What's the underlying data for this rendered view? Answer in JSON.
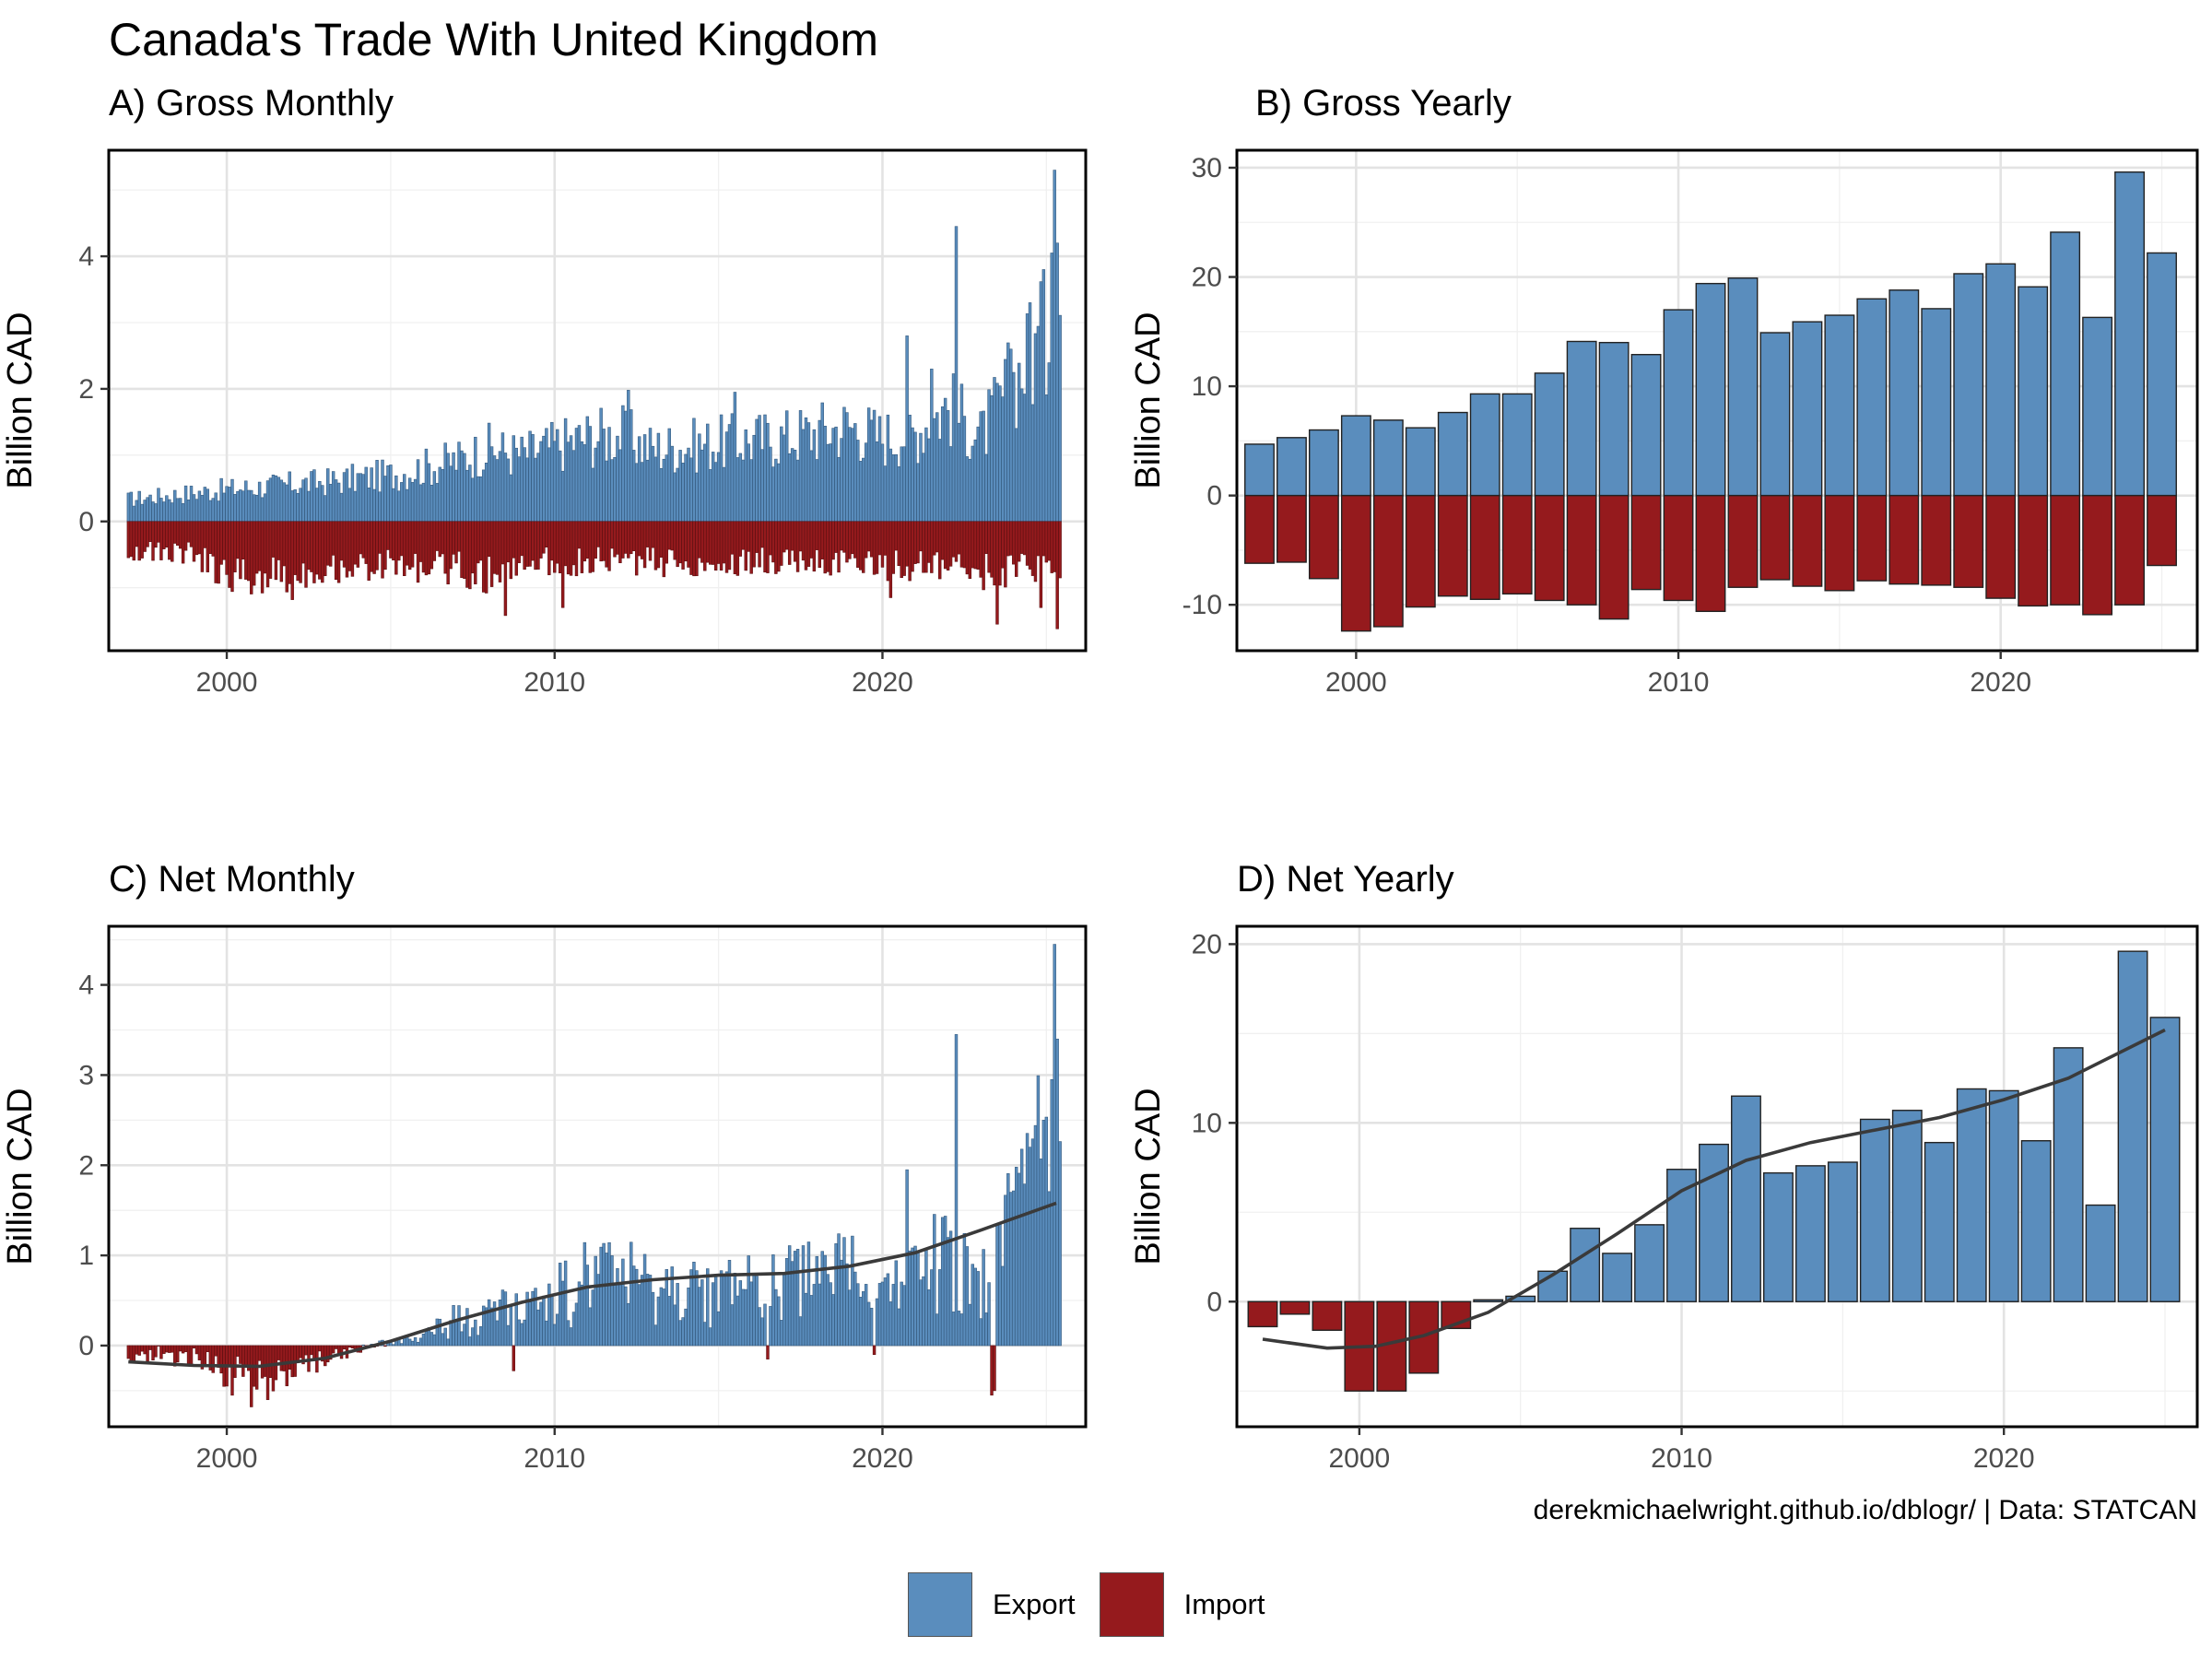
{
  "title": "Canada's Trade With United Kingdom",
  "caption": "derekmichaelwright.github.io/dblogr/ | Data: STATCAN",
  "colors": {
    "export": "#5a8dbd",
    "import": "#951a1d",
    "trend": "#3a3a3a"
  },
  "legend": {
    "items": [
      {
        "label": "Export",
        "color": "#5a8dbd"
      },
      {
        "label": "Import",
        "color": "#951a1d"
      }
    ]
  },
  "chart_data": [
    {
      "id": "A",
      "title": "A) Gross Monthly",
      "type": "bar",
      "ylabel": "Billion CAD",
      "xlim": [
        1996.4,
        2026.2
      ],
      "ylim": [
        -1.95,
        5.6
      ],
      "xticks": [
        2000,
        2010,
        2020
      ],
      "yticks": [
        0,
        2,
        4
      ],
      "grid": true,
      "monthly": true,
      "x_start": 1997,
      "x_end": 2025.4,
      "export_anchors": [
        [
          1997,
          0.38
        ],
        [
          2000,
          0.55
        ],
        [
          2003,
          0.68
        ],
        [
          2005,
          0.8
        ],
        [
          2007,
          1.05
        ],
        [
          2008,
          1.25
        ],
        [
          2009,
          1.15
        ],
        [
          2011,
          1.45
        ],
        [
          2012,
          1.5
        ],
        [
          2013,
          1.25
        ],
        [
          2015,
          1.35
        ],
        [
          2017,
          1.45
        ],
        [
          2019,
          1.65
        ],
        [
          2020,
          1.45
        ],
        [
          2021,
          1.55
        ],
        [
          2022,
          2.0
        ],
        [
          2023,
          1.45
        ],
        [
          2024,
          2.45
        ],
        [
          2025,
          3.2
        ],
        [
          2025.4,
          3.6
        ]
      ],
      "import_anchors": [
        [
          1997,
          -0.5
        ],
        [
          1999,
          -0.55
        ],
        [
          2000,
          -0.95
        ],
        [
          2001,
          -0.95
        ],
        [
          2003,
          -0.8
        ],
        [
          2005,
          -0.75
        ],
        [
          2007,
          -0.8
        ],
        [
          2008,
          -0.95
        ],
        [
          2009,
          -0.7
        ],
        [
          2012,
          -0.68
        ],
        [
          2015,
          -0.72
        ],
        [
          2018,
          -0.68
        ],
        [
          2020,
          -0.75
        ],
        [
          2022,
          -0.82
        ],
        [
          2023,
          -0.88
        ],
        [
          2025,
          -0.78
        ],
        [
          2025.4,
          -0.85
        ]
      ],
      "export_spikes": [
        [
          2022.25,
          4.45
        ],
        [
          2025.25,
          5.3
        ],
        [
          2025.33,
          4.2
        ],
        [
          2025.17,
          4.05
        ],
        [
          2024.92,
          3.8
        ],
        [
          2024.5,
          3.3
        ],
        [
          2020.75,
          2.8
        ],
        [
          2023.9,
          2.6
        ],
        [
          2021.5,
          2.3
        ],
        [
          2015.5,
          1.95
        ],
        [
          2012.25,
          1.98
        ]
      ],
      "import_spikes": [
        [
          2008.5,
          -1.42
        ],
        [
          2010.25,
          -1.3
        ],
        [
          2023.5,
          -1.55
        ],
        [
          2025.33,
          -1.62
        ],
        [
          2002.0,
          -1.18
        ],
        [
          2020.25,
          -1.15
        ],
        [
          2024.8,
          -1.3
        ]
      ]
    },
    {
      "id": "B",
      "title": "B) Gross Yearly",
      "type": "bar",
      "ylabel": "Billion CAD",
      "xlim": [
        1996.3,
        2026.1
      ],
      "ylim": [
        -14.2,
        31.6
      ],
      "xticks": [
        2000,
        2010,
        2020
      ],
      "yticks": [
        30,
        20,
        10,
        0,
        -10
      ],
      "grid": true,
      "x": [
        1997,
        1998,
        1999,
        2000,
        2001,
        2002,
        2003,
        2004,
        2005,
        2006,
        2007,
        2008,
        2009,
        2010,
        2011,
        2012,
        2013,
        2014,
        2015,
        2016,
        2017,
        2018,
        2019,
        2020,
        2021,
        2022,
        2023,
        2024,
        2025
      ],
      "series": [
        {
          "name": "Export",
          "values": [
            4.7,
            5.3,
            6.0,
            7.3,
            6.9,
            6.2,
            7.6,
            9.3,
            9.3,
            11.2,
            14.1,
            14.0,
            12.9,
            17.0,
            19.4,
            19.9,
            14.9,
            15.9,
            16.5,
            18.0,
            18.8,
            17.1,
            20.3,
            21.2,
            19.1,
            24.1,
            16.3,
            29.6,
            22.2
          ]
        },
        {
          "name": "Import",
          "values": [
            -6.2,
            -6.1,
            -7.6,
            -12.4,
            -12.0,
            -10.2,
            -9.2,
            -9.5,
            -9.0,
            -9.6,
            -10.0,
            -11.3,
            -8.6,
            -9.6,
            -10.6,
            -8.4,
            -7.7,
            -8.3,
            -8.7,
            -7.8,
            -8.1,
            -8.2,
            -8.4,
            -9.4,
            -10.1,
            -10.0,
            -10.9,
            -10.0,
            -6.4
          ]
        }
      ]
    },
    {
      "id": "C",
      "title": "C) Net Monthly",
      "type": "bar",
      "ylabel": "Billion CAD",
      "xlim": [
        1996.4,
        2026.2
      ],
      "ylim": [
        -0.9,
        4.65
      ],
      "xticks": [
        2000,
        2010,
        2020
      ],
      "yticks": [
        0,
        1,
        2,
        3,
        4
      ],
      "grid": true,
      "monthly": true,
      "x_start": 1997,
      "x_end": 2025.4,
      "net_anchors": [
        [
          1997,
          -0.12
        ],
        [
          1999,
          -0.15
        ],
        [
          2000,
          -0.35
        ],
        [
          2001,
          -0.4
        ],
        [
          2002,
          -0.28
        ],
        [
          2003,
          -0.15
        ],
        [
          2004,
          -0.05
        ],
        [
          2005,
          0.02
        ],
        [
          2006,
          0.15
        ],
        [
          2007,
          0.3
        ],
        [
          2008,
          0.45
        ],
        [
          2009,
          0.4
        ],
        [
          2010,
          0.6
        ],
        [
          2011,
          0.8
        ],
        [
          2012,
          0.85
        ],
        [
          2013,
          0.6
        ],
        [
          2015,
          0.7
        ],
        [
          2017,
          0.8
        ],
        [
          2019,
          0.95
        ],
        [
          2020,
          0.75
        ],
        [
          2021,
          0.85
        ],
        [
          2022,
          1.15
        ],
        [
          2023,
          0.65
        ],
        [
          2024,
          1.6
        ],
        [
          2025,
          2.4
        ],
        [
          2025.4,
          2.6
        ]
      ],
      "net_spikes": [
        [
          2022.25,
          3.45
        ],
        [
          2025.25,
          4.45
        ],
        [
          2025.33,
          3.4
        ],
        [
          2025.17,
          2.95
        ],
        [
          2024.92,
          2.5
        ],
        [
          2024.5,
          2.2
        ],
        [
          2020.75,
          1.95
        ],
        [
          2023.9,
          1.7
        ],
        [
          2023.35,
          -0.55
        ],
        [
          2023.45,
          -0.5
        ],
        [
          2000.75,
          -0.68
        ],
        [
          2001.25,
          -0.6
        ],
        [
          2008.75,
          -0.28
        ],
        [
          2016.5,
          -0.15
        ],
        [
          2019.75,
          -0.1
        ]
      ],
      "trend": [
        [
          1997,
          -0.18
        ],
        [
          1999,
          -0.22
        ],
        [
          2001,
          -0.23
        ],
        [
          2003,
          -0.14
        ],
        [
          2005,
          0.05
        ],
        [
          2007,
          0.28
        ],
        [
          2009,
          0.48
        ],
        [
          2011,
          0.65
        ],
        [
          2013,
          0.73
        ],
        [
          2015,
          0.78
        ],
        [
          2017,
          0.8
        ],
        [
          2019,
          0.88
        ],
        [
          2021,
          1.03
        ],
        [
          2023,
          1.28
        ],
        [
          2025.3,
          1.58
        ]
      ]
    },
    {
      "id": "D",
      "title": "D) Net Yearly",
      "type": "bar",
      "ylabel": "Billion CAD",
      "xlim": [
        1996.2,
        2026.0
      ],
      "ylim": [
        -7.0,
        21.0
      ],
      "xticks": [
        2000,
        2010,
        2020
      ],
      "yticks": [
        20,
        10,
        0
      ],
      "grid": true,
      "x": [
        1997,
        1998,
        1999,
        2000,
        2001,
        2002,
        2003,
        2004,
        2005,
        2006,
        2007,
        2008,
        2009,
        2010,
        2011,
        2012,
        2013,
        2014,
        2015,
        2016,
        2017,
        2018,
        2019,
        2020,
        2021,
        2022,
        2023,
        2024,
        2025
      ],
      "values": [
        -1.4,
        -0.7,
        -1.6,
        -5.0,
        -5.0,
        -4.0,
        -1.5,
        0.1,
        0.3,
        1.7,
        4.1,
        2.7,
        4.3,
        7.4,
        8.8,
        11.5,
        7.2,
        7.6,
        7.8,
        10.2,
        10.7,
        8.9,
        11.9,
        11.8,
        9.0,
        14.2,
        5.4,
        19.6,
        15.9
      ],
      "trend": [
        [
          1997,
          -2.1
        ],
        [
          1999,
          -2.6
        ],
        [
          2000.5,
          -2.5
        ],
        [
          2002,
          -1.9
        ],
        [
          2004,
          -0.6
        ],
        [
          2006,
          1.5
        ],
        [
          2008,
          3.8
        ],
        [
          2010,
          6.2
        ],
        [
          2012,
          7.9
        ],
        [
          2014,
          8.9
        ],
        [
          2016,
          9.6
        ],
        [
          2018,
          10.3
        ],
        [
          2020,
          11.3
        ],
        [
          2022,
          12.5
        ],
        [
          2025,
          15.2
        ]
      ]
    }
  ]
}
